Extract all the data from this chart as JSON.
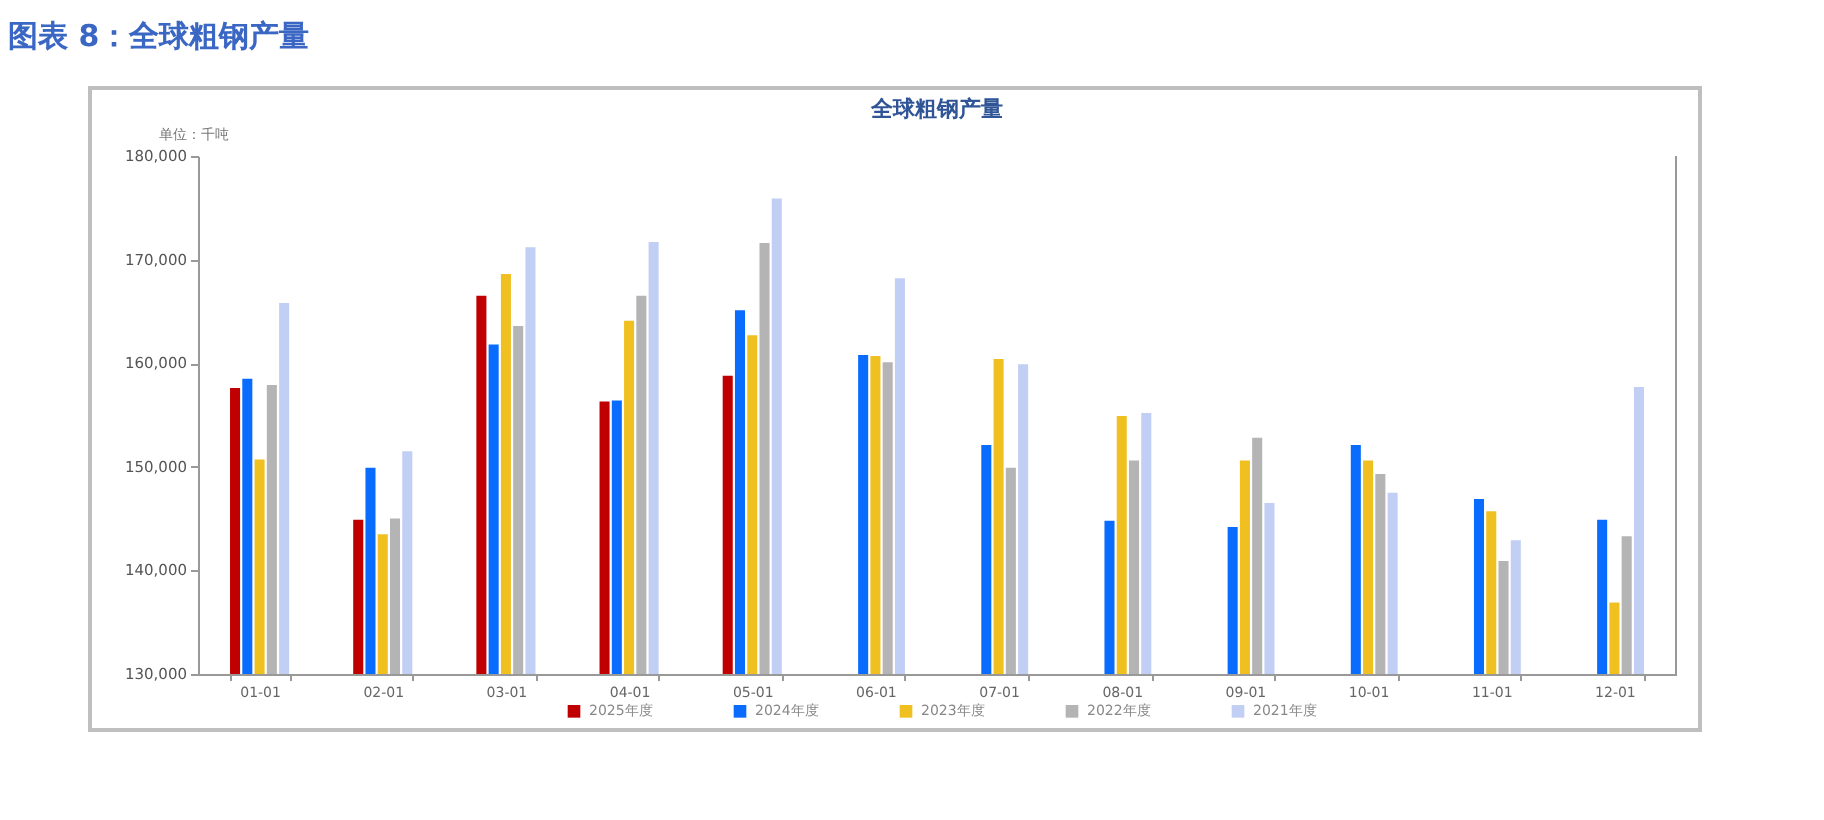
{
  "chart_data": {
    "type": "bar",
    "title": "图表 8：全球粗钢产量",
    "subtitle": "全球粗钢产量",
    "ylabel": "单位：千吨",
    "categories": [
      "01-01",
      "02-01",
      "03-01",
      "04-01",
      "05-01",
      "06-01",
      "07-01",
      "08-01",
      "09-01",
      "10-01",
      "11-01",
      "12-01"
    ],
    "series": [
      {
        "name": "2025年度",
        "color": "#c00000",
        "values": [
          157600,
          144900,
          166500,
          156300,
          158800,
          null,
          null,
          null,
          null,
          null,
          null,
          null
        ]
      },
      {
        "name": "2024年度",
        "color": "#0a6cff",
        "values": [
          158500,
          149900,
          161800,
          156400,
          165100,
          160800,
          152100,
          144800,
          144200,
          152100,
          146900,
          144900
        ]
      },
      {
        "name": "2023年度",
        "color": "#f0c020",
        "values": [
          150700,
          143500,
          168600,
          164100,
          162700,
          160700,
          160400,
          154900,
          150600,
          150600,
          145700,
          136900
        ]
      },
      {
        "name": "2022年度",
        "color": "#b4b4b4",
        "values": [
          157900,
          145000,
          163600,
          166500,
          171600,
          160100,
          149900,
          150600,
          152800,
          149300,
          140900,
          143300
        ]
      },
      {
        "name": "2021年度",
        "color": "#c2cff5",
        "values": [
          165800,
          151500,
          171200,
          171700,
          175900,
          168200,
          159900,
          155200,
          146500,
          147500,
          142900,
          157700
        ]
      }
    ],
    "ylim": [
      130000,
      180000
    ],
    "yticks": [
      {
        "value": 130000,
        "label": "130,000"
      },
      {
        "value": 140000,
        "label": "140,000"
      },
      {
        "value": 150000,
        "label": "150,000"
      },
      {
        "value": 160000,
        "label": "160,000"
      },
      {
        "value": 170000,
        "label": "170,000"
      },
      {
        "value": 180000,
        "label": "180,000"
      }
    ],
    "grid": false,
    "legend": "bottom"
  }
}
